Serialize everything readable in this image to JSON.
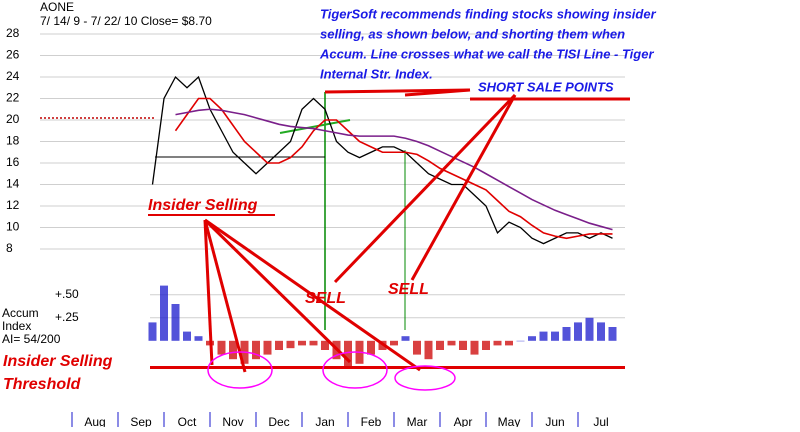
{
  "chart_data": {
    "type": "line",
    "title": "AONE",
    "subtitle": "7/ 14/ 9 - 7/ 22/ 10 Close= $8.70",
    "categories": [
      null,
      null,
      "Aug",
      null,
      null,
      null,
      "Sep",
      null,
      null,
      null,
      "Oct",
      null,
      null,
      null,
      "Nov",
      null,
      null,
      null,
      "Dec",
      null,
      null,
      null,
      "Jan",
      null,
      null,
      null,
      "Feb",
      null,
      null,
      null,
      "Mar",
      null,
      null,
      null,
      "Apr",
      null,
      null,
      null,
      "May",
      null,
      null,
      null,
      "Jun",
      null,
      null,
      null,
      "Jul",
      null
    ],
    "ylim": [
      8,
      28
    ],
    "yticks": [
      8,
      10,
      12,
      14,
      16,
      18,
      20,
      22,
      24,
      26,
      28
    ],
    "grid": true,
    "series": [
      {
        "color": "#000000",
        "values": [
          null,
          null,
          null,
          null,
          null,
          null,
          null,
          14,
          22,
          24,
          23,
          24,
          21,
          19,
          17,
          16,
          15,
          16,
          17,
          18,
          21,
          22,
          21,
          18,
          17,
          16.5,
          17,
          17.5,
          17.5,
          17,
          16,
          15,
          14.5,
          14,
          14,
          13,
          12,
          9.5,
          10.5,
          10,
          9,
          8.5,
          9,
          9.5,
          9.5,
          9,
          9.5,
          9
        ]
      },
      {
        "color": "#e00000",
        "values": [
          null,
          null,
          null,
          null,
          null,
          null,
          null,
          null,
          null,
          19,
          20.5,
          22,
          22,
          21,
          19.5,
          18,
          17,
          16,
          16,
          16.5,
          17.5,
          19,
          20,
          20,
          19,
          18,
          17.5,
          17,
          17,
          17,
          16.8,
          16.2,
          15.5,
          15,
          14.5,
          14,
          13.5,
          12.5,
          11.5,
          11,
          10.2,
          9.5,
          9.2,
          9,
          9.2,
          9.4,
          9.4,
          9.4
        ]
      },
      {
        "color": "#7a1f8a",
        "values": [
          null,
          null,
          null,
          null,
          null,
          null,
          null,
          null,
          null,
          20.5,
          20.7,
          20.9,
          21,
          20.9,
          20.7,
          20.5,
          20.2,
          19.9,
          19.6,
          19.4,
          19.3,
          19.2,
          19,
          18.8,
          18.6,
          18.5,
          18.5,
          18.5,
          18.5,
          18.3,
          18,
          17.6,
          17.1,
          16.6,
          16.1,
          15.6,
          15,
          14.4,
          13.8,
          13.2,
          12.6,
          12.1,
          11.6,
          11.2,
          10.8,
          10.4,
          10.1,
          9.8
        ]
      }
    ],
    "accum_index": {
      "label_lines": [
        "Accum",
        "Index",
        "AI= 54/200"
      ],
      "y2lim": [
        -0.6,
        0.65
      ],
      "y2ticks": [
        {
          "value": 0.5,
          "label": "+.50"
        },
        {
          "value": 0.25,
          "label": "+.25"
        }
      ],
      "color": "#1a1acc",
      "negative_color": "#cc0000",
      "threshold": -0.29,
      "values": [
        null,
        null,
        null,
        null,
        null,
        null,
        null,
        0.2,
        0.6,
        0.4,
        0.1,
        0.05,
        -0.05,
        -0.15,
        -0.2,
        -0.25,
        -0.2,
        -0.15,
        -0.1,
        -0.08,
        -0.05,
        -0.05,
        -0.1,
        -0.2,
        -0.3,
        -0.25,
        -0.15,
        -0.1,
        -0.05,
        0.05,
        -0.15,
        -0.2,
        -0.1,
        -0.05,
        -0.1,
        -0.15,
        -0.1,
        -0.05,
        -0.05,
        0,
        0.05,
        0.1,
        0.1,
        0.15,
        0.2,
        0.25,
        0.2,
        0.15
      ]
    },
    "annotations": {
      "note_lines": [
        "TigerSoft recommends finding stocks showing insider",
        "selling, as shown below, and shorting them when",
        "Accum. Line crosses what we call the TISI Line - Tiger",
        "Internal Str. Index."
      ],
      "short_sale": "SHORT SALE POINTS",
      "insider": "Insider Selling",
      "sell": [
        "SELL",
        "SELL"
      ],
      "threshold_lines": [
        "Insider Selling",
        "Threshold"
      ]
    }
  }
}
